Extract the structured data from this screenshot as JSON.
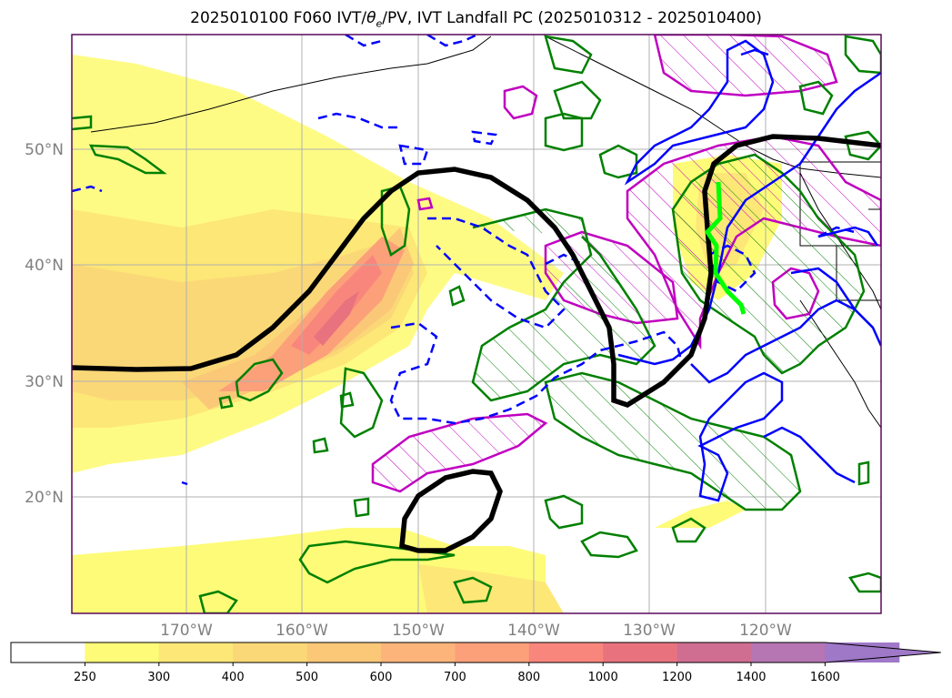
{
  "title_main": "2025010100 F060 IVT/",
  "title_theta": "θ",
  "title_sub": "e",
  "title_rest": "/PV, IVT Landfall PC (2025010312 - 2025010400)",
  "lat_labels": [
    "50°N",
    "40°N",
    "30°N",
    "20°N"
  ],
  "lon_labels": [
    "170°W",
    "160°W",
    "150°W",
    "140°W",
    "130°W",
    "120°W"
  ],
  "colorbar": {
    "levels": [
      "250",
      "300",
      "400",
      "500",
      "600",
      "700",
      "800",
      "1000",
      "1200",
      "1400",
      "1600"
    ],
    "colors": [
      "#ffffff",
      "#fefb78",
      "#fde777",
      "#fbd877",
      "#fbc878",
      "#fcb47a",
      "#fca07a",
      "#f9867c",
      "#e8737f",
      "#cf6e90",
      "#b676b4",
      "#9f78c8"
    ]
  },
  "colors": {
    "geopotential_contour": "#000000",
    "pv_contour_green": "#008000",
    "theta_e_blue": "#0000ff",
    "magenta_hatched": "#c000c0",
    "landfall_line": "#00ff00",
    "grid": "#b0b0b0",
    "frame": "#5a0a5a"
  }
}
